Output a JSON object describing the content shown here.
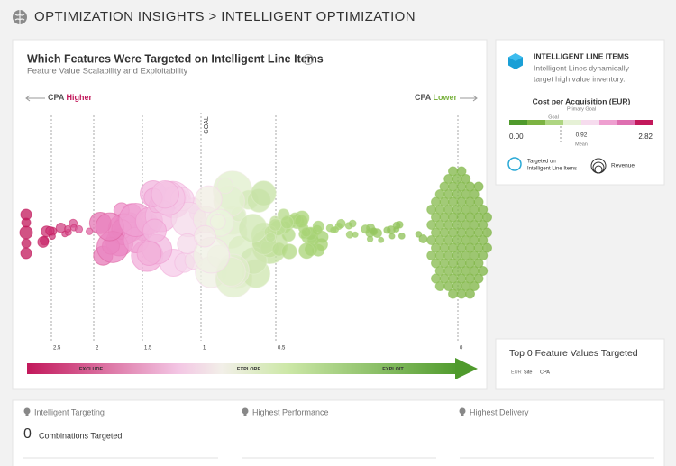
{
  "header": {
    "title": "OPTIMIZATION INSIGHTS > INTELLIGENT OPTIMIZATION"
  },
  "feature_panel": {
    "title": "Which Features Were Targeted on Intelligent Line Items",
    "subtitle": "Feature Value Scalability and Exploitability",
    "left_label": {
      "prefix": "CPA",
      "emphasis": "Higher"
    },
    "right_label": {
      "prefix": "CPA",
      "emphasis": "Lower"
    },
    "goal_label": "GOAL",
    "axis_ticks": [
      2.5,
      2,
      1.5,
      1,
      0.5,
      0
    ],
    "zones": [
      "EXCLUDE",
      "EXPLORE",
      "EXPLOIT"
    ]
  },
  "legend_panel": {
    "title": "INTELLIGENT LINE ITEMS",
    "description": [
      "Intelligent Lines dynamically",
      "target high value inventory."
    ],
    "metric": "Cost per Acquisition (EUR)",
    "metric_note": "Primary Goal",
    "goal_marker": "Goal",
    "min": "0.00",
    "mean": "0.92",
    "mean_label": "Mean",
    "max": "2.82",
    "targeted_label": [
      "Targeted on",
      "Intelligent Line Items"
    ],
    "revenue_label": "Revenue"
  },
  "top_panel": {
    "title": "Top 0 Feature Values Targeted",
    "columns": [
      "EUR",
      "Site",
      "CPA"
    ]
  },
  "summary": {
    "columns": [
      {
        "title": "Intelligent Targeting",
        "count": 0,
        "count_label": "Combinations Targeted"
      },
      {
        "title": "Highest Performance"
      },
      {
        "title": "Highest Delivery"
      }
    ]
  }
}
